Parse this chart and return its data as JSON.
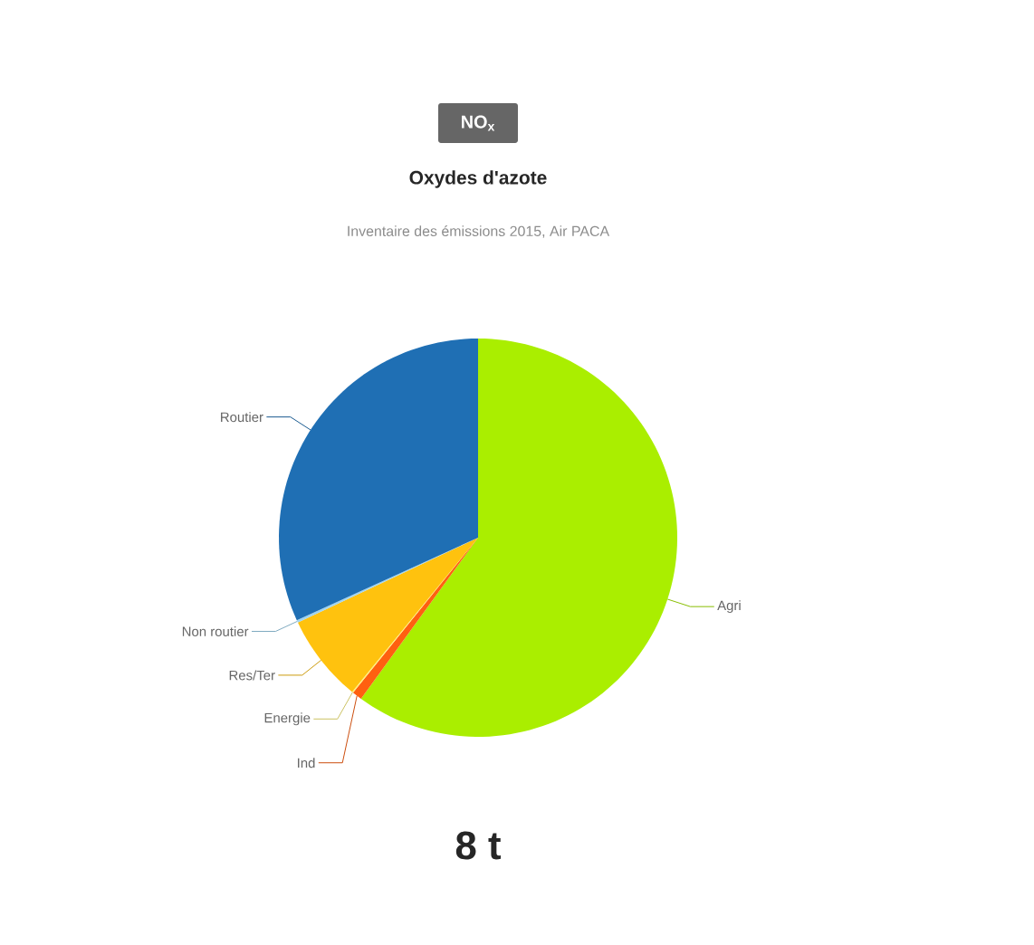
{
  "chart_data": {
    "type": "pie",
    "title": "NO$_{x}$",
    "subtitle": "Oxydes d'azote",
    "annotations": [
      "Inventaire des émissions 2015, Air PACA",
      "8 t"
    ],
    "categories": [
      "Agri",
      "Ind",
      "Energie",
      "Res/Ter",
      "Non routier",
      "Routier"
    ],
    "values": [
      60,
      0.8,
      0.1,
      7.1,
      0.2,
      31.8
    ],
    "colors": [
      "#aaee00",
      "#ff6010",
      "#fff27a",
      "#ffc20e",
      "#9fd4f0",
      "#1f6fb4"
    ]
  }
}
